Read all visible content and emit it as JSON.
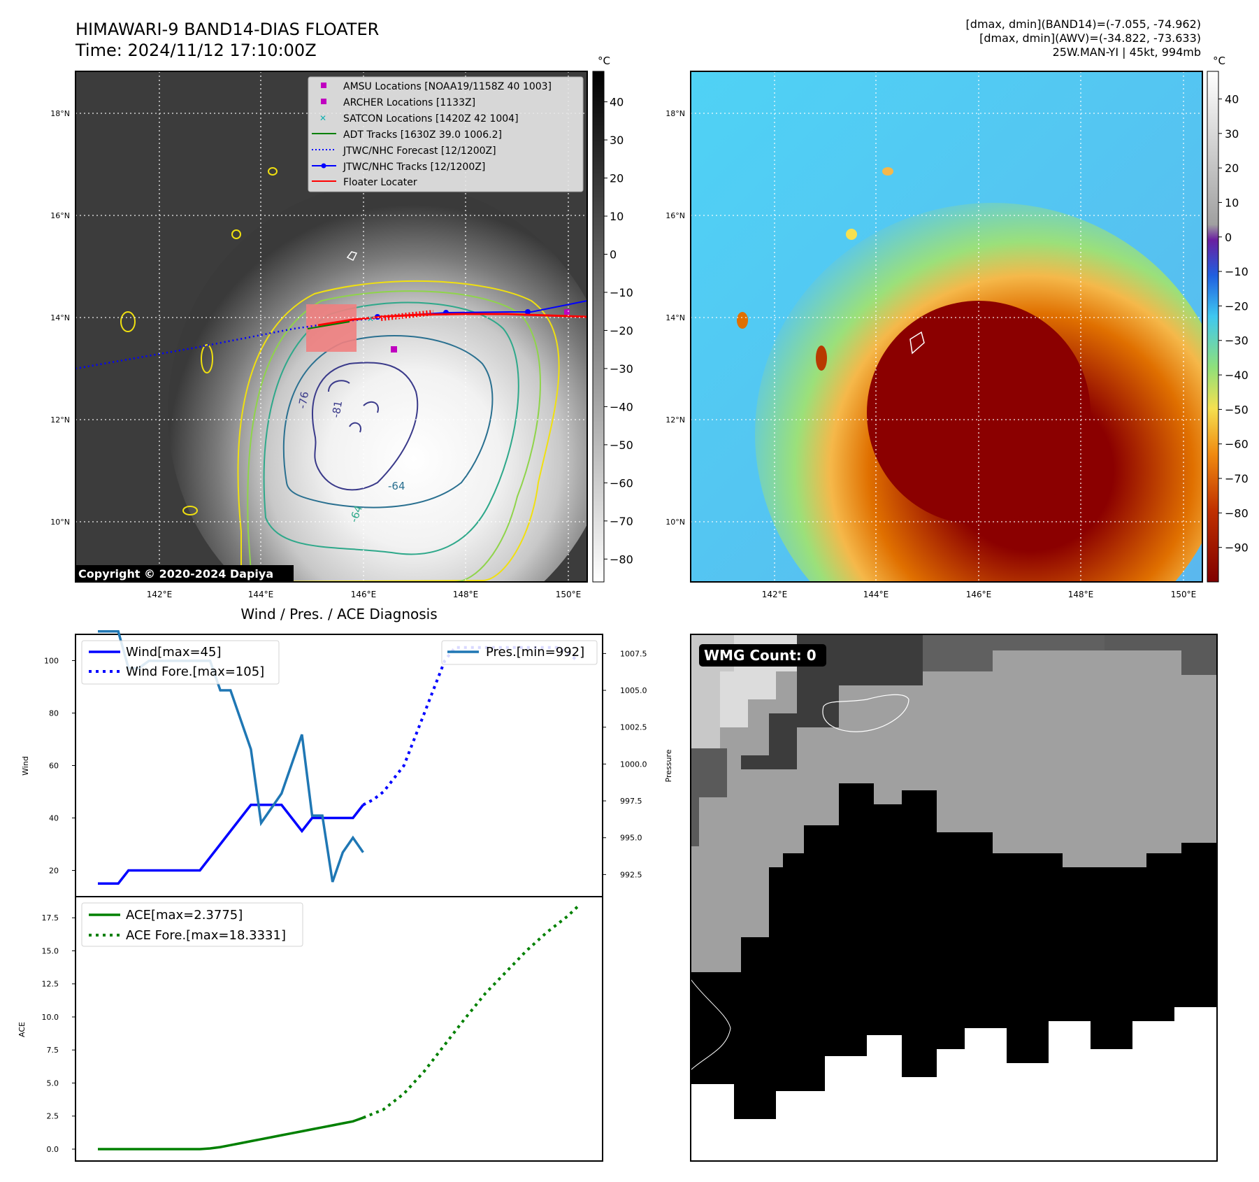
{
  "header": {
    "title": "HIMAWARI-9 BAND14-DIAS FLOATER",
    "time": "Time: 2024/11/12 17:10:00Z",
    "stats": [
      "[dmax, dmin](BAND14)=(-7.055, -74.962)",
      "[dmax, dmin](AWV)=(-34.822, -73.633)",
      "25W.MAN-YI | 45kt, 994mb"
    ],
    "copyright": "Copyright © 2020-2024 Dapiya"
  },
  "maps": {
    "lon_labels": [
      "142°E",
      "144°E",
      "146°E",
      "148°E",
      "150°E"
    ],
    "lat_labels": [
      "18°N",
      "16°N",
      "14°N",
      "12°N",
      "10°N"
    ],
    "left_cbar_unit": "°C",
    "left_cbar_ticks": [
      "40",
      "30",
      "20",
      "10",
      "0",
      "−10",
      "−20",
      "−30",
      "−40",
      "−50",
      "−60",
      "−70",
      "−80"
    ],
    "right_cbar_unit": "°C",
    "right_cbar_ticks": [
      "40",
      "30",
      "20",
      "10",
      "0",
      "−10",
      "−20",
      "−30",
      "−40",
      "−50",
      "−60",
      "−70",
      "−80",
      "−90"
    ],
    "contour_labels": [
      "-76",
      "-81",
      "-64",
      "-64"
    ],
    "legend": [
      "AMSU Locations [NOAA19/1158Z 40 1003]",
      "ARCHER Locations [1133Z]",
      "SATCON Locations [1420Z 42 1004]",
      "ADT Tracks [1630Z 39.0 1006.2]",
      "JTWC/NHC Forecast [12/1200Z]",
      "JTWC/NHC Tracks [12/1200Z]",
      "Floater Locater"
    ],
    "colors": {
      "amsu": "#c000c0",
      "archer": "#c000c0",
      "satcon": "#10b0b0",
      "adt": "#008000",
      "forecast": "#0000ff",
      "tracks": "#0000ff",
      "floater": "#ff0000"
    }
  },
  "diagnosis": {
    "title": "Wind / Pres. / ACE Diagnosis",
    "wind_ylabel": "Wind",
    "pres_ylabel": "Pressure",
    "ace_ylabel": "ACE",
    "legend_wind": "Wind[max=45]",
    "legend_wind_fore": "Wind Fore.[max=105]",
    "legend_pres": "Pres.[min=992]",
    "legend_ace": "ACE[max=2.3775]",
    "legend_ace_fore": "ACE Fore.[max=18.3331]",
    "wind_ticks": [
      "100",
      "80",
      "60",
      "40",
      "20"
    ],
    "pres_ticks": [
      "1007.5",
      "1005.0",
      "1002.5",
      "1000.0",
      "997.5",
      "995.0",
      "992.5"
    ],
    "ace_ticks": [
      "17.5",
      "15.0",
      "12.5",
      "10.0",
      "7.5",
      "5.0",
      "2.5",
      "0.0"
    ]
  },
  "wmg": {
    "label": "WMG Count: 0"
  },
  "chart_data": [
    {
      "type": "line",
      "title": "Wind / Pres. / ACE Diagnosis",
      "ylabel": "Wind",
      "ylim": [
        10,
        110
      ],
      "x": [
        0,
        1,
        2,
        3,
        4,
        5,
        6,
        7,
        8,
        9,
        10,
        11,
        12,
        13,
        14,
        15,
        16,
        17,
        18,
        19,
        20,
        21,
        22,
        23,
        24,
        25,
        26,
        27,
        28,
        29,
        30,
        31,
        32,
        33,
        34,
        35,
        36,
        37,
        38,
        39,
        40,
        41,
        42,
        43,
        44,
        45,
        46,
        47
      ],
      "series": [
        {
          "name": "Wind[max=45]",
          "style": "solid",
          "color": "#0000ff",
          "x": [
            0,
            2,
            3,
            4,
            5,
            6,
            7,
            8,
            9,
            10,
            11,
            12,
            13,
            14,
            15,
            16,
            17,
            18,
            19,
            20,
            21,
            22,
            23,
            24,
            25,
            26
          ],
          "values": [
            15,
            15,
            20,
            20,
            20,
            20,
            20,
            20,
            20,
            20,
            25,
            30,
            35,
            40,
            45,
            45,
            45,
            45,
            40,
            35,
            40,
            40,
            40,
            40,
            40,
            45
          ]
        },
        {
          "name": "Wind Fore.[max=105]",
          "style": "dotted",
          "color": "#0000ff",
          "x": [
            26,
            27,
            28,
            29,
            30,
            31,
            32,
            33,
            34,
            35,
            36,
            37,
            38,
            39,
            40,
            41,
            42,
            43,
            44,
            45,
            46,
            47
          ],
          "values": [
            45,
            47,
            50,
            55,
            60,
            70,
            80,
            90,
            100,
            105,
            105,
            105,
            105,
            105,
            105,
            105,
            105,
            105,
            105,
            105,
            103,
            100
          ]
        }
      ]
    },
    {
      "type": "line",
      "ylabel": "Pressure",
      "ylim": [
        991.0,
        1008.8
      ],
      "x": [
        0,
        2,
        3,
        4,
        5,
        6,
        7,
        8,
        9,
        10,
        11,
        12,
        13,
        14,
        15,
        16,
        17,
        18,
        19,
        20,
        21,
        22,
        23,
        24,
        25,
        26
      ],
      "series": [
        {
          "name": "Pres.[min=992]",
          "color": "#1f77b4",
          "values": [
            1009,
            1009,
            1006.5,
            1006.5,
            1007,
            1007,
            1007,
            1007,
            1007,
            1007,
            1007,
            1005,
            1005,
            1003,
            1001,
            996,
            997,
            998,
            1000,
            1002,
            996.5,
            996.5,
            992,
            994,
            995,
            994
          ]
        }
      ]
    },
    {
      "type": "line",
      "ylabel": "ACE",
      "ylim": [
        -0.9,
        19.1
      ],
      "series": [
        {
          "name": "ACE[max=2.3775]",
          "style": "solid",
          "color": "#008000",
          "x": [
            0,
            10,
            11,
            12,
            13,
            14,
            15,
            16,
            17,
            18,
            19,
            20,
            21,
            22,
            23,
            24,
            25,
            26
          ],
          "values": [
            0,
            0,
            0.05,
            0.15,
            0.3,
            0.45,
            0.6,
            0.75,
            0.9,
            1.05,
            1.2,
            1.35,
            1.5,
            1.65,
            1.8,
            1.95,
            2.1,
            2.3775
          ]
        },
        {
          "name": "ACE Fore.[max=18.3331]",
          "style": "dotted",
          "color": "#008000",
          "x": [
            26,
            28,
            30,
            32,
            34,
            36,
            38,
            40,
            42,
            44,
            46,
            47
          ],
          "values": [
            2.3775,
            3.0,
            4.2,
            5.9,
            7.9,
            9.9,
            11.8,
            13.4,
            15.0,
            16.4,
            17.6,
            18.3331
          ]
        }
      ]
    }
  ]
}
